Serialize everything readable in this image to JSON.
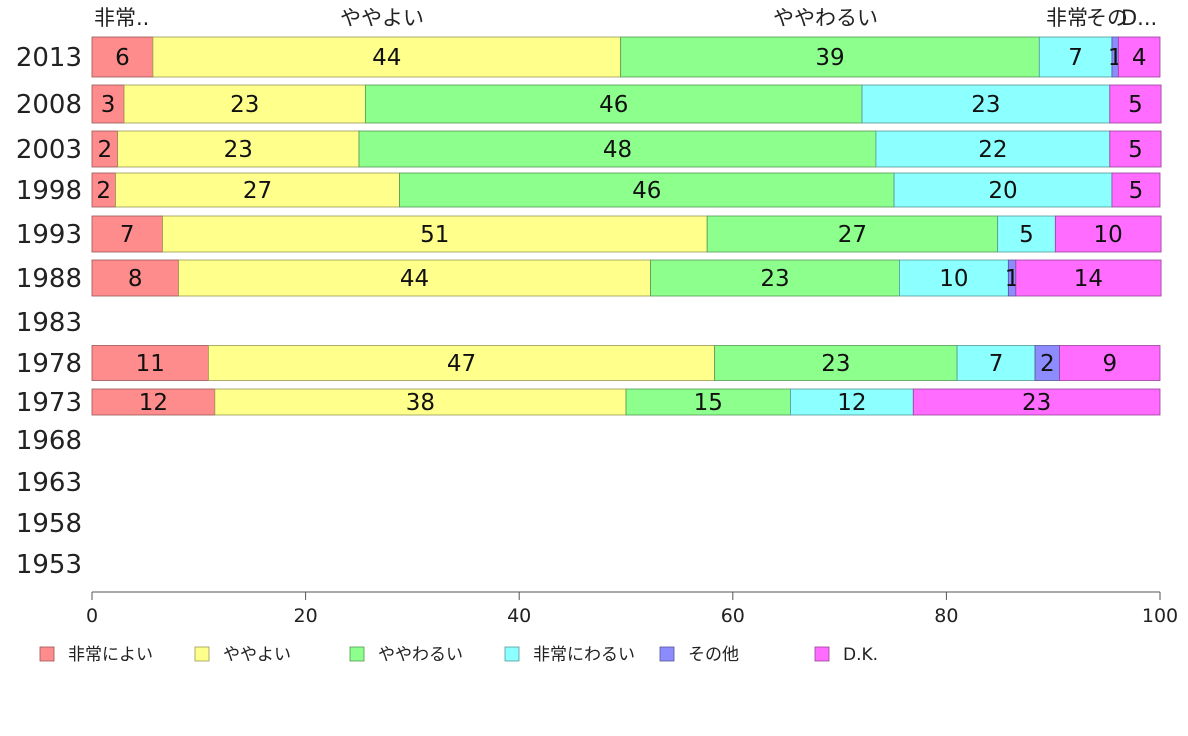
{
  "chart_data": {
    "type": "bar",
    "orientation": "horizontal",
    "stacked": true,
    "title": "",
    "xlabel": "",
    "ylabel": "",
    "xlim": [
      0,
      100
    ],
    "xticks": [
      0,
      20,
      40,
      60,
      80,
      100
    ],
    "categories": [
      "2013",
      "2008",
      "2003",
      "1998",
      "1993",
      "1988",
      "1983",
      "1978",
      "1973",
      "1968",
      "1963",
      "1958",
      "1953"
    ],
    "series": [
      {
        "name": "非常によい",
        "color": "#ff8c8c",
        "values": [
          5.7,
          3.0,
          2.4,
          2.2,
          6.6,
          8.1,
          null,
          10.9,
          11.5,
          null,
          null,
          null,
          null
        ],
        "labels": [
          "6",
          "3",
          "2",
          "2",
          "7",
          "8",
          "",
          "11",
          "12",
          "",
          "",
          "",
          ""
        ]
      },
      {
        "name": "ややよい",
        "color": "#ffff8c",
        "values": [
          43.8,
          22.6,
          22.6,
          26.6,
          51.0,
          44.2,
          null,
          47.4,
          38.5,
          null,
          null,
          null,
          null
        ],
        "labels": [
          "44",
          "23",
          "23",
          "27",
          "51",
          "44",
          "",
          "47",
          "38",
          "",
          "",
          "",
          ""
        ]
      },
      {
        "name": "ややわるい",
        "color": "#8cff8c",
        "values": [
          39.2,
          46.5,
          48.4,
          46.3,
          27.2,
          23.3,
          null,
          22.7,
          15.4,
          null,
          null,
          null,
          null
        ],
        "labels": [
          "39",
          "46",
          "48",
          "46",
          "27",
          "23",
          "",
          "23",
          "15",
          "",
          "",
          "",
          ""
        ]
      },
      {
        "name": "非常にわるい",
        "color": "#8cffff",
        "values": [
          6.8,
          23.2,
          21.9,
          20.4,
          5.4,
          10.2,
          null,
          7.3,
          11.5,
          null,
          null,
          null,
          null
        ],
        "labels": [
          "7",
          "23",
          "22",
          "20",
          "5",
          "10",
          "",
          "7",
          "12",
          "",
          "",
          "",
          ""
        ]
      },
      {
        "name": "その他",
        "color": "#8c8cff",
        "values": [
          0.6,
          0,
          0,
          0,
          0,
          0.7,
          null,
          2.3,
          0,
          null,
          null,
          null,
          null
        ],
        "labels": [
          "1",
          "",
          "",
          "",
          "",
          "1",
          "",
          "2",
          "",
          "",
          "",
          "",
          ""
        ]
      },
      {
        "name": "D.K.",
        "color": "#ff6cff",
        "values": [
          3.9,
          4.8,
          4.8,
          4.5,
          9.9,
          13.6,
          null,
          9.4,
          23.1,
          null,
          null,
          null,
          null
        ],
        "labels": [
          "4",
          "5",
          "5",
          "5",
          "10",
          "14",
          "",
          "9",
          "23",
          "",
          "",
          "",
          ""
        ]
      }
    ],
    "top_labels": [
      "非常..",
      "ややよい",
      "ややわるい",
      "非常",
      "その",
      "D..."
    ],
    "legend": {
      "placement": "bottom"
    }
  }
}
